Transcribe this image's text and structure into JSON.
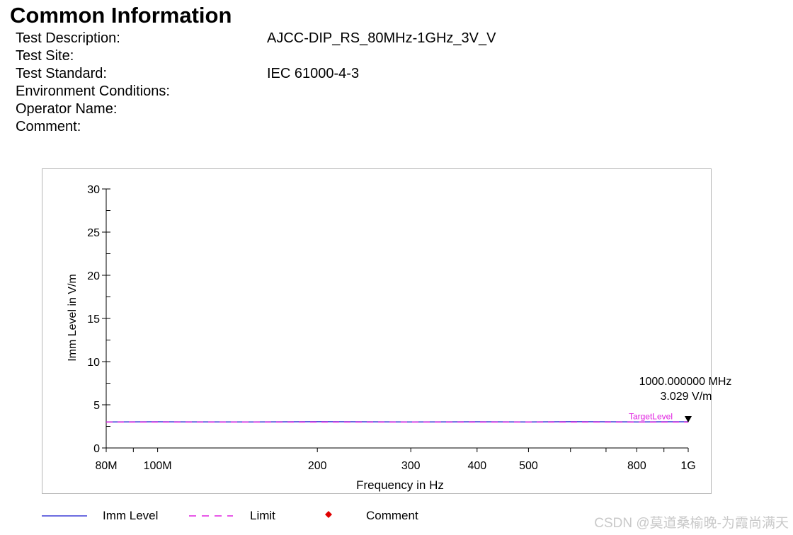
{
  "header": {
    "title": "Common Information"
  },
  "info": [
    {
      "label": "Test Description:",
      "value": "AJCC-DIP_RS_80MHz-1GHz_3V_V"
    },
    {
      "label": "Test Site:",
      "value": ""
    },
    {
      "label": "Test Standard:",
      "value": "IEC 61000-4-3"
    },
    {
      "label": "Environment Conditions:",
      "value": ""
    },
    {
      "label": "Operator Name:",
      "value": ""
    },
    {
      "label": "Comment:",
      "value": ""
    }
  ],
  "chart_data": {
    "type": "line",
    "xlabel": "Frequency in Hz",
    "ylabel": "Imm Level in V/m",
    "xscale": "log",
    "xlim": [
      80000000,
      1000000000
    ],
    "ylim": [
      0,
      30
    ],
    "y_ticks": [
      0,
      5,
      10,
      15,
      20,
      25,
      30
    ],
    "x_tick_labels": [
      {
        "value": 80000000,
        "label": "80M"
      },
      {
        "value": 100000000,
        "label": "100M"
      },
      {
        "value": 200000000,
        "label": "200"
      },
      {
        "value": 300000000,
        "label": "300"
      },
      {
        "value": 400000000,
        "label": "400"
      },
      {
        "value": 500000000,
        "label": "500"
      },
      {
        "value": 800000000,
        "label": "800"
      },
      {
        "value": 1000000000,
        "label": "1G"
      }
    ],
    "x_minor_ticks": [
      90000000,
      600000000,
      700000000,
      900000000
    ],
    "grid": false,
    "legend_position": "bottom",
    "series": [
      {
        "name": "Imm Level",
        "style": "solid",
        "color": "#3b3bd6",
        "x": [
          80000000,
          100000000,
          150000000,
          200000000,
          300000000,
          400000000,
          500000000,
          600000000,
          700000000,
          800000000,
          900000000,
          1000000000
        ],
        "y": [
          3.02,
          3.03,
          3.01,
          3.04,
          3.02,
          3.03,
          3.02,
          3.04,
          3.03,
          3.02,
          3.03,
          3.029
        ]
      },
      {
        "name": "Limit",
        "style": "dashed",
        "color": "#e020e0",
        "x": [
          80000000,
          1000000000
        ],
        "y": [
          3.0,
          3.0
        ]
      },
      {
        "name": "Comment",
        "style": "marker",
        "color": "#e00000",
        "x": [],
        "y": []
      }
    ],
    "annotations": [
      {
        "label": "TargetLevel",
        "x": 1000000000,
        "y": 3.0,
        "color": "#e020e0"
      },
      {
        "line1": "1000.000000 MHz",
        "line2": "3.029 V/m",
        "x": 1000000000,
        "y": 3.029
      }
    ]
  },
  "footer": {
    "watermark": "CSDN @莫道桑榆晚-为霞尚满天"
  }
}
